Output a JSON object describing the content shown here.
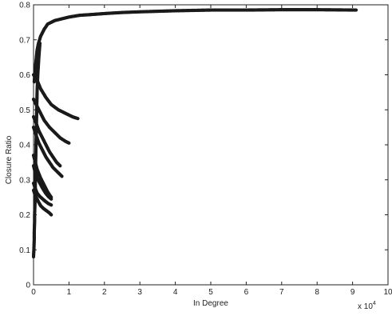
{
  "chart_data": {
    "type": "scatter",
    "xlabel": "In Degree",
    "ylabel": "Closure Ratio",
    "x_multiplier_label": "x 10",
    "x_multiplier_exponent": "4",
    "xlim": [
      0,
      10
    ],
    "ylim": [
      0,
      0.8
    ],
    "xticks": [
      "0",
      "1",
      "2",
      "3",
      "4",
      "5",
      "6",
      "7",
      "8",
      "9",
      "10"
    ],
    "yticks": [
      "0",
      "0.1",
      "0.2",
      "0.3",
      "0.4",
      "0.5",
      "0.6",
      "0.7",
      "0.8"
    ],
    "grid": false,
    "marker_color": "#1a1a1a",
    "series": [
      {
        "x": [
          0.02,
          0.05,
          0.08,
          0.1,
          0.14,
          0.2,
          0.3,
          0.4,
          0.5,
          0.6,
          0.8,
          1.0,
          1.3,
          1.6,
          2.0,
          2.5,
          3.0,
          4.0,
          5.0,
          6.0,
          7.0,
          8.0,
          9.1
        ],
        "y": [
          0.58,
          0.62,
          0.65,
          0.67,
          0.69,
          0.71,
          0.73,
          0.745,
          0.75,
          0.755,
          0.76,
          0.765,
          0.77,
          0.772,
          0.775,
          0.778,
          0.78,
          0.783,
          0.785,
          0.785,
          0.786,
          0.786,
          0.785
        ]
      },
      {
        "x": [
          0.0,
          0.1,
          0.2,
          0.35,
          0.5,
          0.7,
          0.9,
          1.1,
          1.25
        ],
        "y": [
          0.6,
          0.585,
          0.56,
          0.535,
          0.515,
          0.5,
          0.49,
          0.48,
          0.475
        ]
      },
      {
        "x": [
          0.0,
          0.1,
          0.2,
          0.3,
          0.45,
          0.6,
          0.75,
          0.9,
          1.0
        ],
        "y": [
          0.53,
          0.51,
          0.49,
          0.47,
          0.45,
          0.435,
          0.42,
          0.41,
          0.405
        ]
      },
      {
        "x": [
          0.0,
          0.08,
          0.15,
          0.25,
          0.35,
          0.45,
          0.55,
          0.65,
          0.75
        ],
        "y": [
          0.48,
          0.46,
          0.44,
          0.42,
          0.4,
          0.38,
          0.365,
          0.35,
          0.34
        ]
      },
      {
        "x": [
          0.0,
          0.08,
          0.15,
          0.25,
          0.35,
          0.45,
          0.55,
          0.65,
          0.8
        ],
        "y": [
          0.45,
          0.425,
          0.405,
          0.385,
          0.365,
          0.35,
          0.335,
          0.325,
          0.31
        ]
      },
      {
        "x": [
          0.0,
          0.05,
          0.1,
          0.2,
          0.3,
          0.4,
          0.5
        ],
        "y": [
          0.37,
          0.35,
          0.33,
          0.305,
          0.285,
          0.265,
          0.25
        ]
      },
      {
        "x": [
          0.0,
          0.05,
          0.1,
          0.18,
          0.26,
          0.34,
          0.42,
          0.5
        ],
        "y": [
          0.34,
          0.32,
          0.305,
          0.29,
          0.275,
          0.262,
          0.252,
          0.245
        ]
      },
      {
        "x": [
          0.0,
          0.05,
          0.1,
          0.18,
          0.26,
          0.34,
          0.42,
          0.5
        ],
        "y": [
          0.29,
          0.275,
          0.262,
          0.252,
          0.245,
          0.238,
          0.232,
          0.228
        ]
      },
      {
        "x": [
          0.0,
          0.05,
          0.1,
          0.15,
          0.2,
          0.28,
          0.36,
          0.44,
          0.5
        ],
        "y": [
          0.27,
          0.255,
          0.245,
          0.235,
          0.226,
          0.218,
          0.212,
          0.206,
          0.2
        ]
      },
      {
        "x": [
          0.0,
          0.01,
          0.02,
          0.02,
          0.03,
          0.03,
          0.04,
          0.05,
          0.05,
          0.06,
          0.07,
          0.08,
          0.09,
          0.1,
          0.12,
          0.15,
          0.18
        ],
        "y": [
          0.08,
          0.1,
          0.13,
          0.15,
          0.18,
          0.2,
          0.23,
          0.26,
          0.3,
          0.35,
          0.4,
          0.45,
          0.5,
          0.55,
          0.6,
          0.65,
          0.69
        ]
      }
    ]
  }
}
